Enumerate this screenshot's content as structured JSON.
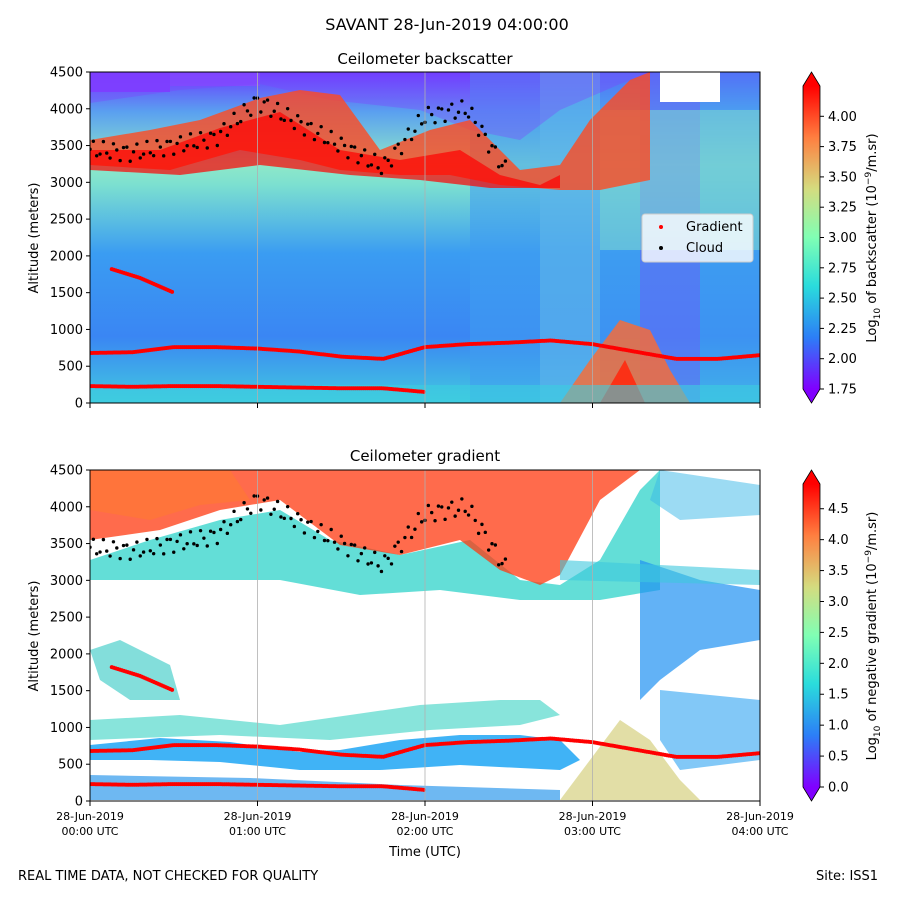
{
  "suptitle": "SAVANT 28-Jun-2019 04:00:00",
  "footer": {
    "left": "REAL TIME DATA, NOT CHECKED FOR QUALITY",
    "right": "Site: ISS1"
  },
  "colors": {
    "gradient_marker": "#ff0000",
    "cloud_marker": "#000000",
    "colormap": [
      "#8000ff",
      "#2c7ef7",
      "#2adcdc",
      "#80ffb4",
      "#d4dc7f",
      "#ff7f40",
      "#ff0000"
    ]
  },
  "chart_data": [
    {
      "type": "heatmap",
      "title": "Ceilometer backscatter",
      "ylabel": "Altitude (meters)",
      "xlabel": "",
      "ylim": [
        0,
        4500
      ],
      "yticks": [
        "0",
        "500",
        "1000",
        "1500",
        "2000",
        "2500",
        "3000",
        "3500",
        "4000",
        "4500"
      ],
      "xlim": [
        "28-Jun-2019 00:00 UTC",
        "28-Jun-2019 04:00 UTC"
      ],
      "colorbar": {
        "label_prefix": "Log",
        "label_sub": "10",
        "label_rest": " of backscatter (10",
        "label_sup": "−9",
        "label_end": "/m.sr)",
        "range": [
          1.75,
          4.25
        ],
        "ticks": [
          "1.75",
          "2.00",
          "2.25",
          "2.50",
          "2.75",
          "3.00",
          "3.25",
          "3.50",
          "3.75",
          "4.00"
        ]
      },
      "legend": {
        "placement": "center-right",
        "entries": [
          "Gradient",
          "Cloud"
        ]
      },
      "gradient_layers": [
        {
          "name": "low",
          "x_hours": [
            0.0,
            0.25,
            0.5,
            0.75,
            1.0,
            1.25,
            1.5,
            1.75,
            2.0,
            2.25,
            2.5,
            2.75,
            3.0,
            3.25,
            3.5,
            3.75,
            4.0
          ],
          "altitude": [
            680,
            690,
            760,
            760,
            740,
            700,
            630,
            600,
            760,
            800,
            820,
            850,
            800,
            700,
            600,
            600,
            650
          ]
        },
        {
          "name": "surface",
          "x_hours": [
            0.0,
            0.25,
            0.5,
            0.75,
            1.0,
            1.25,
            1.5,
            1.75,
            2.0
          ],
          "altitude": [
            230,
            220,
            230,
            230,
            220,
            210,
            200,
            200,
            150
          ]
        },
        {
          "name": "mid",
          "x_hours": [
            0.13,
            0.3,
            0.5
          ],
          "altitude": [
            1820,
            1700,
            1500
          ]
        }
      ],
      "cloud_layers": [
        {
          "x_hours": [
            0.0,
            0.25,
            0.5,
            0.75,
            1.0,
            1.25,
            1.5,
            1.75,
            2.0,
            2.25,
            2.5
          ],
          "altitude": [
            3450,
            3400,
            3500,
            3600,
            4100,
            3800,
            3500,
            3200,
            3900,
            4000,
            3100
          ]
        }
      ]
    },
    {
      "type": "heatmap",
      "title": "Ceilometer gradient",
      "ylabel": "Altitude (meters)",
      "xlabel": "Time (UTC)",
      "ylim": [
        0,
        4500
      ],
      "yticks": [
        "0",
        "500",
        "1000",
        "1500",
        "2000",
        "2500",
        "3000",
        "3500",
        "4000",
        "4500"
      ],
      "xticks": [
        {
          "line1": "28-Jun-2019",
          "line2": "00:00 UTC"
        },
        {
          "line1": "28-Jun-2019",
          "line2": "01:00 UTC"
        },
        {
          "line1": "28-Jun-2019",
          "line2": "02:00 UTC"
        },
        {
          "line1": "28-Jun-2019",
          "line2": "03:00 UTC"
        },
        {
          "line1": "28-Jun-2019",
          "line2": "04:00 UTC"
        }
      ],
      "colorbar": {
        "label_prefix": "Log",
        "label_sub": "10",
        "label_rest": " of negative gradient (10",
        "label_sup": "−9",
        "label_end": "/m.sr)",
        "range": [
          0.0,
          4.9
        ],
        "ticks": [
          "0.0",
          "0.5",
          "1.0",
          "1.5",
          "2.0",
          "2.5",
          "3.0",
          "3.5",
          "4.0",
          "4.5"
        ]
      }
    }
  ]
}
